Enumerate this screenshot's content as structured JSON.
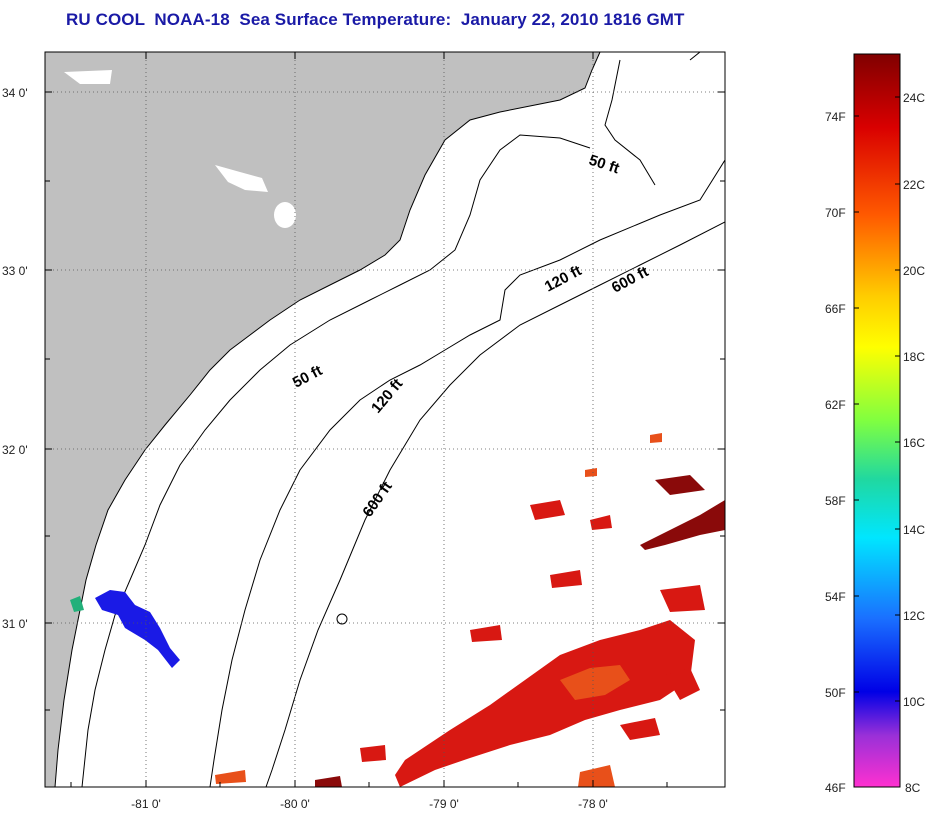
{
  "title": "RU COOL  NOAA-18  Sea Surface Temperature:  January 22, 2010 1816 GMT",
  "map": {
    "lat_ticks": [
      "34 0'",
      "33 0'",
      "32 0'",
      "31 0'"
    ],
    "lon_ticks": [
      "-81 0'",
      "-80 0'",
      "-79 0'",
      "-78 0'"
    ],
    "isobath_labels": {
      "ft50_a": "50 ft",
      "ft50_b": "50 ft",
      "ft120_a": "120 ft",
      "ft120_b": "120 ft",
      "ft600_a": "600 ft",
      "ft600_b": "600 ft"
    }
  },
  "colorbar": {
    "fahrenheit_labels": [
      "74F",
      "70F",
      "66F",
      "62F",
      "58F",
      "54F",
      "50F",
      "46F"
    ],
    "celsius_labels": [
      "24C",
      "22C",
      "20C",
      "18C",
      "16C",
      "14C",
      "12C",
      "10C",
      "8C"
    ]
  },
  "colors": {
    "title": "#1a1aa6",
    "land": "#c0c0c0",
    "ocean": "#ffffff",
    "warm_water": "#e01a12",
    "hot_water": "#8a0a0a",
    "cold_water": "#1a1ae6"
  }
}
